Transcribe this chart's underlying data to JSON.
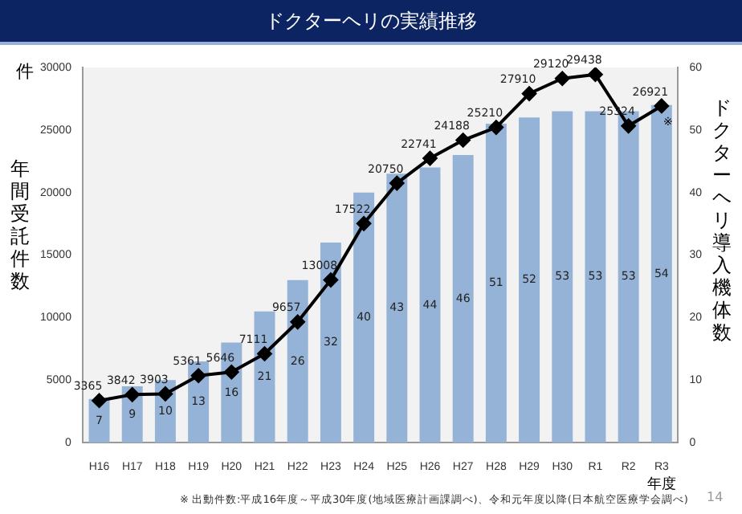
{
  "chart_data": {
    "type": "bar",
    "title": "ドクターヘリの実績推移",
    "xlabel": "年度",
    "ylabel": "年間受託件数",
    "y2label": "ドクターヘリ導入機体数",
    "categories": [
      "H16",
      "H17",
      "H18",
      "H19",
      "H20",
      "H21",
      "H22",
      "H23",
      "H24",
      "H25",
      "H26",
      "H27",
      "H28",
      "H29",
      "H30",
      "R1",
      "R2",
      "R3"
    ],
    "series": [
      {
        "axis": "y2",
        "color": "#95b3d7",
        "values": [
          7,
          9,
          10,
          13,
          16,
          21,
          26,
          32,
          40,
          43,
          44,
          46,
          51,
          52,
          53,
          53,
          53,
          54
        ]
      },
      {
        "type": "line",
        "color": "#000000",
        "values": [
          3365,
          3842,
          3903,
          5361,
          5646,
          7111,
          9657,
          13008,
          17522,
          20750,
          22741,
          24188,
          25210,
          27910,
          29120,
          29438,
          25324,
          26921
        ]
      }
    ],
    "ylim": [
      0,
      30000
    ],
    "yticks": [
      0,
      5000,
      10000,
      15000,
      20000,
      25000,
      30000
    ],
    "y2lim": [
      0,
      60
    ],
    "y2ticks": [
      0,
      10,
      20,
      30,
      40,
      50,
      60
    ],
    "grid": false,
    "legend": false,
    "marker": "diamond",
    "line_style": "solid",
    "data_labels": true,
    "annotations": [
      "件",
      "※",
      "※ 出動件数:平成16年度～平成30年度(地域医療計画課調べ)、令和元年度以降(日本航空医療学会調べ)",
      "14"
    ]
  }
}
